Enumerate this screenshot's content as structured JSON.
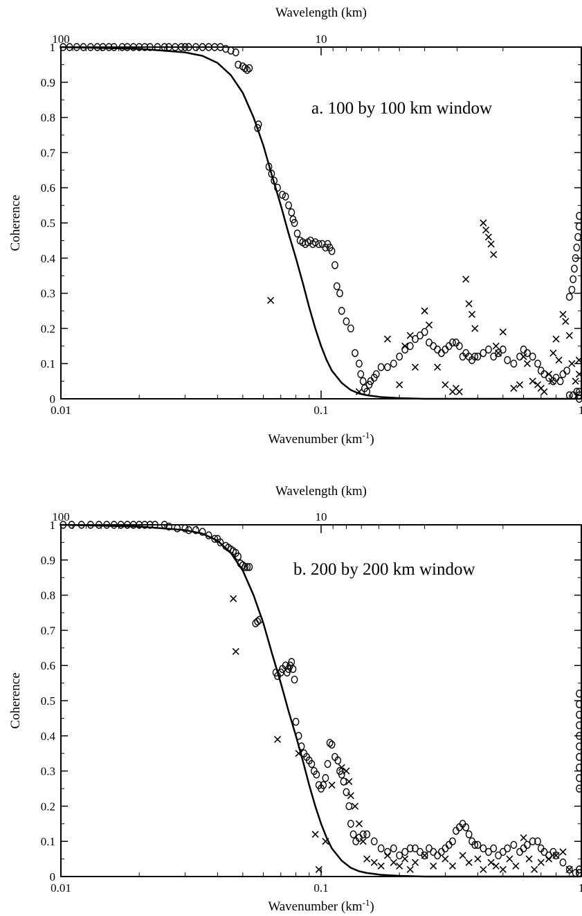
{
  "chart_data": [
    {
      "type": "scatter",
      "panel": "a",
      "annotation": "a.  100 by 100 km window",
      "xlabel": "Wavenumber (km",
      "xlabel_sup": "-1",
      "xlabel_close": ")",
      "x2label": "Wavelength (km)",
      "ylabel": "Coherence",
      "xscale": "log",
      "xlim": [
        0.01,
        1
      ],
      "ylim": [
        0,
        1
      ],
      "x_ticks": [
        {
          "value": 0.01,
          "label": "0.01"
        },
        {
          "value": 0.1,
          "label": "0.1"
        },
        {
          "value": 1,
          "label": "1"
        }
      ],
      "x2_ticks": [
        {
          "value": 100,
          "label": "100"
        },
        {
          "value": 10,
          "label": "10"
        }
      ],
      "y_ticks": [
        {
          "value": 0,
          "label": "0"
        },
        {
          "value": 0.1,
          "label": "0.1"
        },
        {
          "value": 0.2,
          "label": "0.2"
        },
        {
          "value": 0.3,
          "label": "0.3"
        },
        {
          "value": 0.4,
          "label": "0.4"
        },
        {
          "value": 0.5,
          "label": "0.5"
        },
        {
          "value": 0.6,
          "label": "0.6"
        },
        {
          "value": 0.7,
          "label": "0.7"
        },
        {
          "value": 0.8,
          "label": "0.8"
        },
        {
          "value": 0.9,
          "label": "0.9"
        },
        {
          "value": 1,
          "label": "1"
        }
      ],
      "curve": {
        "style": "line",
        "x": [
          0.01,
          0.02,
          0.03,
          0.035,
          0.04,
          0.045,
          0.05,
          0.055,
          0.06,
          0.065,
          0.07,
          0.075,
          0.08,
          0.085,
          0.09,
          0.095,
          0.1,
          0.105,
          0.11,
          0.12,
          0.13,
          0.14,
          0.15,
          0.17,
          0.2,
          0.25
        ],
        "y": [
          1.0,
          0.995,
          0.985,
          0.975,
          0.955,
          0.92,
          0.87,
          0.8,
          0.72,
          0.63,
          0.55,
          0.47,
          0.4,
          0.33,
          0.26,
          0.2,
          0.15,
          0.11,
          0.08,
          0.045,
          0.025,
          0.015,
          0.01,
          0.005,
          0.002,
          0.0
        ]
      },
      "series": [
        {
          "marker": "circle",
          "x": [
            0.0102,
            0.0108,
            0.0115,
            0.0122,
            0.013,
            0.0138,
            0.0145,
            0.0153,
            0.016,
            0.0172,
            0.018,
            0.019,
            0.02,
            0.021,
            0.022,
            0.0235,
            0.025,
            0.026,
            0.0275,
            0.029,
            0.03,
            0.031,
            0.033,
            0.035,
            0.037,
            0.039,
            0.041,
            0.043,
            0.045,
            0.047,
            0.048,
            0.05,
            0.051,
            0.052,
            0.053,
            0.057,
            0.0575,
            0.063,
            0.0645,
            0.066,
            0.068,
            0.071,
            0.073,
            0.075,
            0.077,
            0.078,
            0.079,
            0.081,
            0.083,
            0.085,
            0.087,
            0.089,
            0.091,
            0.093,
            0.095,
            0.098,
            0.101,
            0.104,
            0.106,
            0.108,
            0.11,
            0.113,
            0.115,
            0.118,
            0.12,
            0.125,
            0.13,
            0.135,
            0.14,
            0.142,
            0.145,
            0.147,
            0.15,
            0.153,
            0.155,
            0.16,
            0.163,
            0.17,
            0.18,
            0.19,
            0.2,
            0.21,
            0.22,
            0.23,
            0.24,
            0.25,
            0.26,
            0.27,
            0.28,
            0.29,
            0.3,
            0.31,
            0.32,
            0.33,
            0.34,
            0.35,
            0.36,
            0.37,
            0.38,
            0.39,
            0.4,
            0.42,
            0.44,
            0.46,
            0.48,
            0.5,
            0.52,
            0.55,
            0.58,
            0.6,
            0.62,
            0.65,
            0.68,
            0.7,
            0.72,
            0.75,
            0.78,
            0.8,
            0.83,
            0.85,
            0.88,
            0.9,
            0.92,
            0.93,
            0.94,
            0.95,
            0.96,
            0.97,
            0.98,
            0.99,
            1.0,
            1.0,
            1.0,
            0.9,
            0.93,
            0.96
          ],
          "y": [
            1.0,
            1.0,
            1.0,
            1.0,
            1.0,
            1.0,
            1.0,
            1.0,
            1.0,
            1.0,
            1.0,
            1.0,
            1.0,
            1.0,
            1.0,
            1.0,
            1.0,
            1.0,
            1.0,
            1.0,
            1.0,
            1.0,
            1.0,
            1.0,
            1.0,
            1.0,
            1.0,
            0.995,
            0.99,
            0.985,
            0.95,
            0.945,
            0.94,
            0.935,
            0.94,
            0.77,
            0.78,
            0.66,
            0.64,
            0.62,
            0.6,
            0.58,
            0.575,
            0.55,
            0.53,
            0.51,
            0.5,
            0.47,
            0.45,
            0.445,
            0.44,
            0.445,
            0.45,
            0.44,
            0.445,
            0.44,
            0.44,
            0.43,
            0.44,
            0.43,
            0.42,
            0.38,
            0.32,
            0.3,
            0.25,
            0.22,
            0.2,
            0.13,
            0.1,
            0.07,
            0.05,
            0.03,
            0.02,
            0.04,
            0.05,
            0.06,
            0.07,
            0.09,
            0.09,
            0.1,
            0.12,
            0.14,
            0.15,
            0.17,
            0.18,
            0.19,
            0.16,
            0.15,
            0.14,
            0.13,
            0.14,
            0.15,
            0.16,
            0.16,
            0.15,
            0.12,
            0.13,
            0.12,
            0.11,
            0.12,
            0.12,
            0.13,
            0.14,
            0.12,
            0.13,
            0.14,
            0.11,
            0.1,
            0.12,
            0.14,
            0.13,
            0.12,
            0.1,
            0.08,
            0.07,
            0.06,
            0.05,
            0.06,
            0.05,
            0.07,
            0.08,
            0.29,
            0.31,
            0.34,
            0.37,
            0.4,
            0.43,
            0.46,
            0.49,
            0.52,
            0.02,
            0.0,
            0.01,
            0.01,
            0.01,
            0.02
          ]
        },
        {
          "marker": "cross",
          "x": [
            0.064,
            0.14,
            0.18,
            0.2,
            0.21,
            0.22,
            0.23,
            0.25,
            0.26,
            0.28,
            0.3,
            0.32,
            0.33,
            0.34,
            0.36,
            0.37,
            0.38,
            0.39,
            0.42,
            0.43,
            0.44,
            0.45,
            0.46,
            0.47,
            0.48,
            0.5,
            0.55,
            0.58,
            0.6,
            0.62,
            0.65,
            0.68,
            0.7,
            0.72,
            0.75,
            0.77,
            0.78,
            0.8,
            0.82,
            0.85,
            0.87,
            0.9,
            0.92,
            0.95,
            0.98,
            1.0
          ],
          "y": [
            0.28,
            0.02,
            0.17,
            0.04,
            0.15,
            0.18,
            0.09,
            0.25,
            0.21,
            0.09,
            0.04,
            0.02,
            0.03,
            0.02,
            0.34,
            0.27,
            0.24,
            0.2,
            0.5,
            0.48,
            0.46,
            0.44,
            0.41,
            0.15,
            0.13,
            0.19,
            0.03,
            0.04,
            0.12,
            0.1,
            0.05,
            0.04,
            0.03,
            0.02,
            0.07,
            0.05,
            0.13,
            0.17,
            0.11,
            0.24,
            0.22,
            0.18,
            0.1,
            0.05,
            0.11,
            0.07
          ]
        }
      ]
    },
    {
      "type": "scatter",
      "panel": "b",
      "annotation": "b.  200 by 200 km window",
      "xlabel": "Wavenumber (km",
      "xlabel_sup": "-1",
      "xlabel_close": ")",
      "x2label": "Wavelength (km)",
      "ylabel": "Coherence",
      "xscale": "log",
      "xlim": [
        0.01,
        1
      ],
      "ylim": [
        0,
        1
      ],
      "x_ticks": [
        {
          "value": 0.01,
          "label": "0.01"
        },
        {
          "value": 0.1,
          "label": "0.1"
        },
        {
          "value": 1,
          "label": "1"
        }
      ],
      "x2_ticks": [
        {
          "value": 100,
          "label": "100"
        },
        {
          "value": 10,
          "label": "10"
        }
      ],
      "y_ticks": [
        {
          "value": 0,
          "label": "0"
        },
        {
          "value": 0.1,
          "label": "0.1"
        },
        {
          "value": 0.2,
          "label": "0.2"
        },
        {
          "value": 0.3,
          "label": "0.3"
        },
        {
          "value": 0.4,
          "label": "0.4"
        },
        {
          "value": 0.5,
          "label": "0.5"
        },
        {
          "value": 0.6,
          "label": "0.6"
        },
        {
          "value": 0.7,
          "label": "0.7"
        },
        {
          "value": 0.8,
          "label": "0.8"
        },
        {
          "value": 0.9,
          "label": "0.9"
        },
        {
          "value": 1,
          "label": "1"
        }
      ],
      "curve": {
        "style": "line",
        "x": [
          0.01,
          0.02,
          0.03,
          0.035,
          0.04,
          0.045,
          0.05,
          0.055,
          0.06,
          0.065,
          0.07,
          0.075,
          0.08,
          0.085,
          0.09,
          0.095,
          0.1,
          0.105,
          0.11,
          0.12,
          0.13,
          0.14,
          0.15,
          0.17,
          0.2,
          0.25
        ],
        "y": [
          1.0,
          0.995,
          0.985,
          0.975,
          0.955,
          0.92,
          0.87,
          0.8,
          0.72,
          0.63,
          0.55,
          0.47,
          0.4,
          0.33,
          0.26,
          0.2,
          0.15,
          0.11,
          0.08,
          0.045,
          0.025,
          0.015,
          0.01,
          0.005,
          0.002,
          0.0
        ]
      },
      "series": [
        {
          "marker": "circle",
          "x": [
            0.0102,
            0.011,
            0.012,
            0.013,
            0.014,
            0.015,
            0.016,
            0.017,
            0.018,
            0.019,
            0.02,
            0.021,
            0.022,
            0.023,
            0.025,
            0.026,
            0.028,
            0.03,
            0.031,
            0.033,
            0.035,
            0.037,
            0.039,
            0.04,
            0.041,
            0.043,
            0.044,
            0.045,
            0.046,
            0.047,
            0.048,
            0.049,
            0.05,
            0.051,
            0.052,
            0.053,
            0.056,
            0.057,
            0.058,
            0.067,
            0.068,
            0.07,
            0.071,
            0.073,
            0.074,
            0.075,
            0.076,
            0.077,
            0.078,
            0.079,
            0.08,
            0.082,
            0.084,
            0.086,
            0.088,
            0.09,
            0.092,
            0.094,
            0.096,
            0.098,
            0.1,
            0.102,
            0.104,
            0.106,
            0.108,
            0.11,
            0.113,
            0.116,
            0.118,
            0.12,
            0.122,
            0.125,
            0.128,
            0.13,
            0.133,
            0.136,
            0.14,
            0.145,
            0.15,
            0.16,
            0.17,
            0.18,
            0.19,
            0.2,
            0.21,
            0.22,
            0.23,
            0.24,
            0.25,
            0.26,
            0.27,
            0.28,
            0.29,
            0.3,
            0.31,
            0.32,
            0.33,
            0.34,
            0.35,
            0.36,
            0.37,
            0.38,
            0.39,
            0.4,
            0.42,
            0.44,
            0.46,
            0.48,
            0.5,
            0.52,
            0.55,
            0.58,
            0.6,
            0.62,
            0.65,
            0.68,
            0.7,
            0.72,
            0.75,
            0.78,
            0.8,
            0.85,
            0.9,
            0.95,
            1.0,
            1.0,
            1.0,
            1.0,
            1.0,
            1.0,
            1.0,
            1.0,
            1.0,
            1.0,
            1.0,
            1.0,
            1.0,
            1.0
          ],
          "y": [
            1.0,
            1.0,
            1.0,
            1.0,
            1.0,
            1.0,
            1.0,
            1.0,
            1.0,
            1.0,
            1.0,
            1.0,
            1.0,
            1.0,
            1.0,
            0.995,
            0.99,
            0.99,
            0.985,
            0.985,
            0.98,
            0.97,
            0.96,
            0.96,
            0.95,
            0.94,
            0.935,
            0.93,
            0.925,
            0.92,
            0.91,
            0.89,
            0.885,
            0.88,
            0.88,
            0.88,
            0.72,
            0.725,
            0.73,
            0.58,
            0.57,
            0.58,
            0.59,
            0.6,
            0.58,
            0.59,
            0.6,
            0.61,
            0.59,
            0.56,
            0.44,
            0.4,
            0.37,
            0.35,
            0.34,
            0.33,
            0.32,
            0.3,
            0.29,
            0.26,
            0.25,
            0.26,
            0.28,
            0.32,
            0.38,
            0.375,
            0.34,
            0.33,
            0.3,
            0.29,
            0.27,
            0.24,
            0.2,
            0.15,
            0.12,
            0.1,
            0.11,
            0.12,
            0.12,
            0.1,
            0.08,
            0.07,
            0.08,
            0.06,
            0.07,
            0.08,
            0.08,
            0.07,
            0.06,
            0.08,
            0.07,
            0.06,
            0.07,
            0.08,
            0.09,
            0.1,
            0.13,
            0.14,
            0.15,
            0.14,
            0.12,
            0.1,
            0.09,
            0.09,
            0.08,
            0.07,
            0.08,
            0.06,
            0.07,
            0.08,
            0.09,
            0.07,
            0.08,
            0.09,
            0.1,
            0.1,
            0.08,
            0.07,
            0.06,
            0.07,
            0.06,
            0.04,
            0.02,
            0.01,
            0.25,
            0.28,
            0.31,
            0.34,
            0.37,
            0.4,
            0.43,
            0.46,
            0.49,
            0.52,
            0.01,
            0.02,
            0.01,
            0.02
          ]
        },
        {
          "marker": "cross",
          "x": [
            0.046,
            0.047,
            0.068,
            0.082,
            0.095,
            0.098,
            0.104,
            0.11,
            0.12,
            0.125,
            0.128,
            0.13,
            0.135,
            0.14,
            0.145,
            0.15,
            0.16,
            0.17,
            0.18,
            0.19,
            0.2,
            0.21,
            0.22,
            0.23,
            0.25,
            0.27,
            0.3,
            0.32,
            0.35,
            0.37,
            0.4,
            0.42,
            0.45,
            0.47,
            0.5,
            0.53,
            0.56,
            0.6,
            0.63,
            0.66,
            0.7,
            0.75,
            0.8,
            0.85,
            0.9
          ],
          "y": [
            0.79,
            0.64,
            0.39,
            0.35,
            0.12,
            0.02,
            0.1,
            0.26,
            0.31,
            0.3,
            0.27,
            0.23,
            0.2,
            0.15,
            0.1,
            0.05,
            0.04,
            0.03,
            0.06,
            0.04,
            0.03,
            0.05,
            0.02,
            0.04,
            0.06,
            0.03,
            0.05,
            0.03,
            0.06,
            0.04,
            0.05,
            0.02,
            0.04,
            0.03,
            0.02,
            0.05,
            0.03,
            0.11,
            0.05,
            0.02,
            0.04,
            0.05,
            0.06,
            0.07,
            0.02
          ]
        }
      ]
    }
  ]
}
